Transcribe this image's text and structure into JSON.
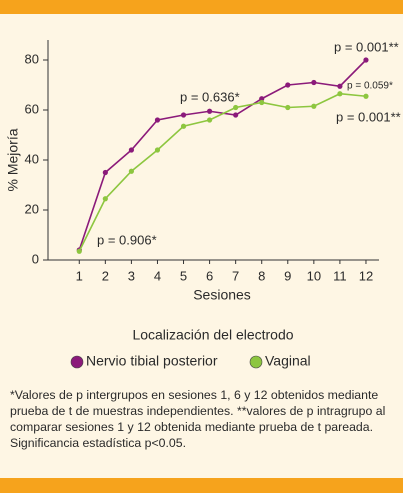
{
  "chart_data": {
    "type": "line",
    "x": [
      1,
      2,
      3,
      4,
      5,
      6,
      7,
      8,
      9,
      10,
      11,
      12
    ],
    "xlim": [
      -0.2,
      12.5
    ],
    "xticks": [
      1,
      2,
      3,
      4,
      5,
      6,
      7,
      8,
      9,
      10,
      11,
      12
    ],
    "ylim": [
      0,
      88
    ],
    "yticks": [
      0,
      20,
      40,
      60,
      80
    ],
    "x_label": "Sesiones",
    "y_label": "% Mejoría",
    "legend_title": "Localización del electrodo",
    "series": [
      {
        "name": "Nervio tibial posterior",
        "color": "#8b1a7a",
        "values": [
          4,
          35,
          44,
          56,
          58,
          59.5,
          58,
          64.5,
          70,
          71,
          69.5,
          80
        ]
      },
      {
        "name": "Vaginal",
        "color": "#8dc63f",
        "values": [
          3.5,
          24.5,
          35.5,
          44,
          53.5,
          56,
          61,
          63,
          61,
          61.5,
          66.5,
          65.5
        ]
      }
    ],
    "annotations": [
      "p = 0.001**",
      "p = 0.059*",
      "p = 0.001**",
      "p = 0.636*",
      "p = 0.906*"
    ]
  },
  "footnote": "*Valores de p intergrupos en sesiones 1, 6 y 12 obtenidos mediante prueba de t de muestras independientes. **valores de p intragrupo al comparar sesiones 1 y 12 obtenida  mediante prueba de t pareada. Significancia estadística p<0.05."
}
